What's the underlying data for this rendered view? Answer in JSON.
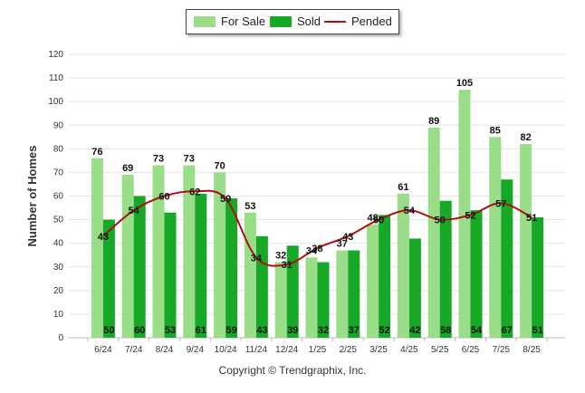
{
  "chart_data": {
    "type": "bar",
    "ylabel": "Number of Homes",
    "ylim": [
      0,
      120
    ],
    "yticks": [
      0,
      10,
      20,
      30,
      40,
      50,
      60,
      70,
      80,
      90,
      100,
      110,
      120
    ],
    "grid": true,
    "legend_position": "top-center",
    "categories": [
      "6/24",
      "7/24",
      "8/24",
      "9/24",
      "10/24",
      "11/24",
      "12/24",
      "1/25",
      "2/25",
      "3/25",
      "4/25",
      "5/25",
      "6/25",
      "7/25",
      "8/25"
    ],
    "series": [
      {
        "name": "For Sale",
        "type": "bar",
        "color": "#99dd88",
        "values": [
          76,
          69,
          73,
          73,
          70,
          53,
          32,
          34,
          37,
          48,
          61,
          89,
          105,
          85,
          82
        ]
      },
      {
        "name": "Sold",
        "type": "bar",
        "color": "#18a828",
        "values": [
          50,
          60,
          53,
          61,
          59,
          43,
          39,
          32,
          37,
          52,
          42,
          58,
          54,
          67,
          51
        ]
      },
      {
        "name": "Pended",
        "type": "line",
        "color": "#b01010",
        "values": [
          43,
          54,
          60,
          62,
          59,
          34,
          31,
          38,
          43,
          50,
          54,
          50,
          52,
          57,
          51
        ]
      }
    ]
  },
  "footer": {
    "copyright": "Copyright © Trendgraphix, Inc."
  }
}
